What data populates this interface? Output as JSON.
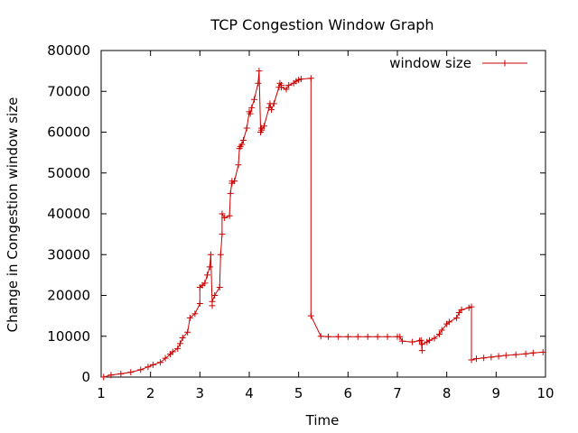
{
  "chart_data": {
    "type": "line",
    "title": "TCP Congestion Window Graph",
    "xlabel": "Time",
    "ylabel": "Change in Congestion window size",
    "xlim": [
      1,
      10
    ],
    "ylim": [
      0,
      80000
    ],
    "x_ticks": [
      1,
      2,
      3,
      4,
      5,
      6,
      7,
      8,
      9,
      10
    ],
    "y_ticks": [
      0,
      10000,
      20000,
      30000,
      40000,
      50000,
      60000,
      70000,
      80000
    ],
    "grid": false,
    "legend": "top-right",
    "series": [
      {
        "name": "window size",
        "color": "#cc0000",
        "marker": "plus",
        "x": [
          1.05,
          1.2,
          1.4,
          1.6,
          1.8,
          1.95,
          2.05,
          2.2,
          2.3,
          2.4,
          2.45,
          2.55,
          2.6,
          2.65,
          2.75,
          2.8,
          2.9,
          3.0,
          3.0,
          3.05,
          3.1,
          3.15,
          3.2,
          3.22,
          3.25,
          3.25,
          3.3,
          3.4,
          3.42,
          3.45,
          3.45,
          3.5,
          3.6,
          3.62,
          3.65,
          3.65,
          3.7,
          3.78,
          3.8,
          3.82,
          3.85,
          3.88,
          3.95,
          4.0,
          4.02,
          4.05,
          4.1,
          4.18,
          4.2,
          4.23,
          4.25,
          4.25,
          4.3,
          4.4,
          4.42,
          4.45,
          4.5,
          4.6,
          4.62,
          4.65,
          4.65,
          4.75,
          4.8,
          4.9,
          4.95,
          5.0,
          5.05,
          5.25,
          5.25,
          5.45,
          5.6,
          5.8,
          6.0,
          6.2,
          6.4,
          6.6,
          6.8,
          7.0,
          7.05,
          7.1,
          7.3,
          7.45,
          7.48,
          7.5,
          7.5,
          7.6,
          7.65,
          7.75,
          7.85,
          7.9,
          8.0,
          8.05,
          8.2,
          8.25,
          8.3,
          8.45,
          8.5,
          8.5,
          8.6,
          8.75,
          8.9,
          9.05,
          9.2,
          9.4,
          9.6,
          9.75,
          9.95
        ],
        "y": [
          0,
          500,
          800,
          1200,
          1800,
          2500,
          3000,
          3600,
          4600,
          5600,
          6200,
          7000,
          8200,
          9600,
          11000,
          14500,
          15500,
          18000,
          22000,
          22500,
          23000,
          25000,
          27000,
          30000,
          17500,
          18500,
          20000,
          22000,
          30000,
          35000,
          40000,
          39000,
          39500,
          45000,
          48000,
          47500,
          48000,
          52000,
          56000,
          56500,
          57000,
          58000,
          61000,
          65000,
          64500,
          66000,
          68000,
          72000,
          75000,
          60000,
          61000,
          60500,
          61500,
          66000,
          67000,
          65500,
          67000,
          71000,
          72000,
          71500,
          71000,
          70500,
          71500,
          72000,
          72500,
          72800,
          73000,
          73200,
          15000,
          10000,
          9900,
          9900,
          9900,
          9900,
          9900,
          9900,
          9900,
          9900,
          9900,
          8800,
          8600,
          8900,
          9000,
          6500,
          8000,
          8600,
          9000,
          9500,
          10500,
          11500,
          13000,
          13500,
          14500,
          15800,
          16500,
          17000,
          17200,
          4200,
          4500,
          4700,
          4900,
          5100,
          5300,
          5500,
          5700,
          5900,
          6100
        ]
      }
    ]
  }
}
